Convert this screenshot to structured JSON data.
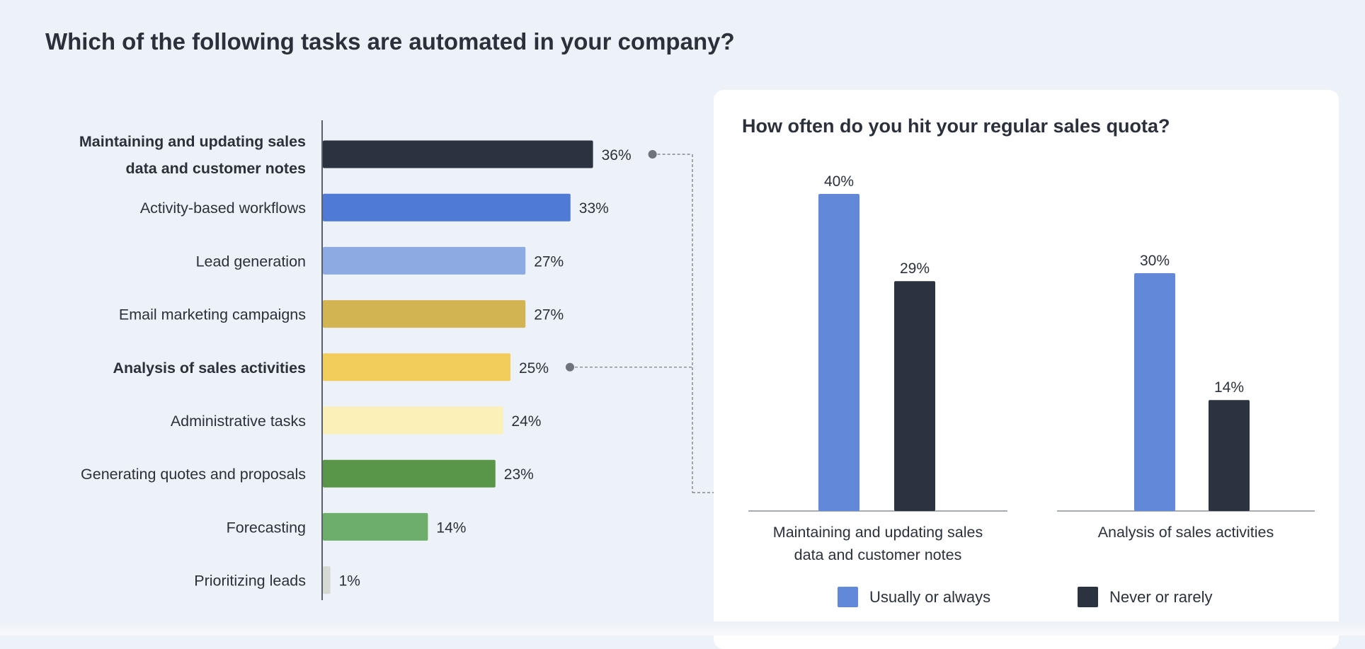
{
  "title": "Which of the following tasks are automated in your company?",
  "chart_data": [
    {
      "type": "bar",
      "orientation": "horizontal",
      "categories": [
        "Maintaining and updating sales data and customer notes",
        "Activity-based workflows",
        "Lead generation",
        "Email marketing campaigns",
        "Analysis of sales activities",
        "Administrative tasks",
        "Generating quotes and proposals",
        "Forecasting",
        "Prioritizing leads"
      ],
      "category_lines": [
        [
          "Maintaining and updating sales",
          "data and customer notes"
        ],
        [
          "Activity-based workflows"
        ],
        [
          "Lead generation"
        ],
        [
          "Email marketing campaigns"
        ],
        [
          "Analysis of sales activities"
        ],
        [
          "Administrative tasks"
        ],
        [
          "Generating quotes and proposals"
        ],
        [
          "Forecasting"
        ],
        [
          "Prioritizing leads"
        ]
      ],
      "bold_categories": [
        0,
        4
      ],
      "values": [
        36,
        33,
        27,
        27,
        25,
        24,
        23,
        14,
        1
      ],
      "data_labels": [
        "36%",
        "33%",
        "27%",
        "27%",
        "25%",
        "24%",
        "23%",
        "14%",
        "1%"
      ],
      "colors": [
        "#2b3240",
        "#4f7bd6",
        "#8eaae3",
        "#d3b452",
        "#f2cd5c",
        "#fbf0b8",
        "#5a964a",
        "#6cae6a",
        "#d5dad3"
      ],
      "xlim": [
        0,
        40
      ],
      "grid": false,
      "highlight_connectors": [
        0,
        4
      ]
    },
    {
      "type": "bar",
      "title": "How often do you hit your regular sales quota?",
      "categories": [
        "Maintaining and updating sales data and customer notes",
        "Analysis of sales activities"
      ],
      "category_lines": [
        [
          "Maintaining and updating sales",
          "data and customer notes"
        ],
        [
          "Analysis of sales activities"
        ]
      ],
      "series": [
        {
          "name": "Usually or always",
          "values": [
            40,
            30
          ],
          "labels": [
            "40%",
            "30%"
          ],
          "color": "#6289d9"
        },
        {
          "name": "Never or rarely",
          "values": [
            29,
            14
          ],
          "labels": [
            "29%",
            "14%"
          ],
          "color": "#2b3240"
        }
      ],
      "ylim": [
        0,
        40
      ],
      "grid": false,
      "legend": "bottom"
    }
  ]
}
